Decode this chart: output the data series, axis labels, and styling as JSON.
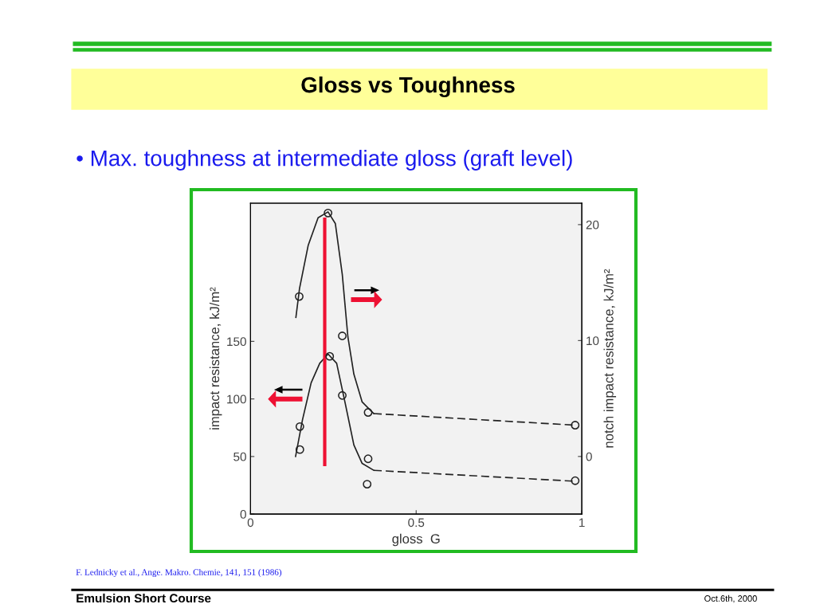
{
  "chart_data": {
    "type": "line",
    "title": "Gloss vs Toughness",
    "subtitle": "• Max. toughness at intermediate gloss (graft level)",
    "xlabel": "gloss  G",
    "ylabel": "impact resistance, kJ/m²",
    "y2label": "notch impact resistance, kJ/m²",
    "xlim": [
      0,
      1
    ],
    "xticks": [
      0,
      0.5,
      1
    ],
    "ylim": [
      0,
      270
    ],
    "yticks": [
      0,
      50,
      100,
      150
    ],
    "y2lim": [
      -4.97,
      21.85
    ],
    "y2ticks": [
      0,
      10,
      20
    ],
    "grid": false,
    "series": [
      {
        "type": "scatter",
        "axis": "y2",
        "color": "#222222",
        "marker": "circle",
        "x": [
          0.147,
          0.234,
          0.277,
          0.355,
          0.98
        ],
        "values": [
          13.8,
          21.0,
          10.4,
          3.8,
          2.7
        ]
      },
      {
        "axis": "y2",
        "color": "#222222",
        "marker": "none",
        "line_style": "solid",
        "x": [
          0.137,
          0.148,
          0.174,
          0.204,
          0.234,
          0.256,
          0.277,
          0.294,
          0.312,
          0.337,
          0.372
        ],
        "values": [
          12.0,
          14.5,
          18.2,
          20.6,
          21.1,
          20.1,
          15.7,
          10.3,
          7.1,
          4.7,
          3.7
        ]
      },
      {
        "axis": "y2",
        "color": "#222222",
        "marker": "none",
        "line_style": "dashed",
        "x": [
          0.372,
          0.98
        ],
        "values": [
          3.7,
          2.7
        ]
      },
      {
        "type": "scatter",
        "color": "#222222",
        "marker": "circle",
        "x": [
          0.149,
          0.149,
          0.239,
          0.277,
          0.355,
          0.352,
          0.98
        ],
        "values": [
          76,
          56,
          137,
          103,
          48,
          26,
          29
        ]
      },
      {
        "color": "#222222",
        "marker": "none",
        "line_style": "solid",
        "x": [
          0.136,
          0.157,
          0.183,
          0.209,
          0.234,
          0.26,
          0.286,
          0.312,
          0.337,
          0.372
        ],
        "values": [
          50,
          82,
          114,
          131,
          139,
          131,
          96,
          60,
          44,
          38
        ]
      },
      {
        "color": "#222222",
        "marker": "none",
        "line_style": "dashed",
        "x": [
          0.372,
          0.98
        ],
        "values": [
          38,
          28.5
        ]
      },
      {
        "color": "#ee1133",
        "marker": "none",
        "line_style": "solid",
        "x": [
          0.224,
          0.224
        ],
        "values": [
          43,
          256
        ]
      }
    ],
    "annotations": [
      "F. Lednicky et al., Ange. Makro. Chemie, 141, 151 (1986)",
      "Emulsion Short Course",
      "Oct.6th, 2000"
    ]
  }
}
